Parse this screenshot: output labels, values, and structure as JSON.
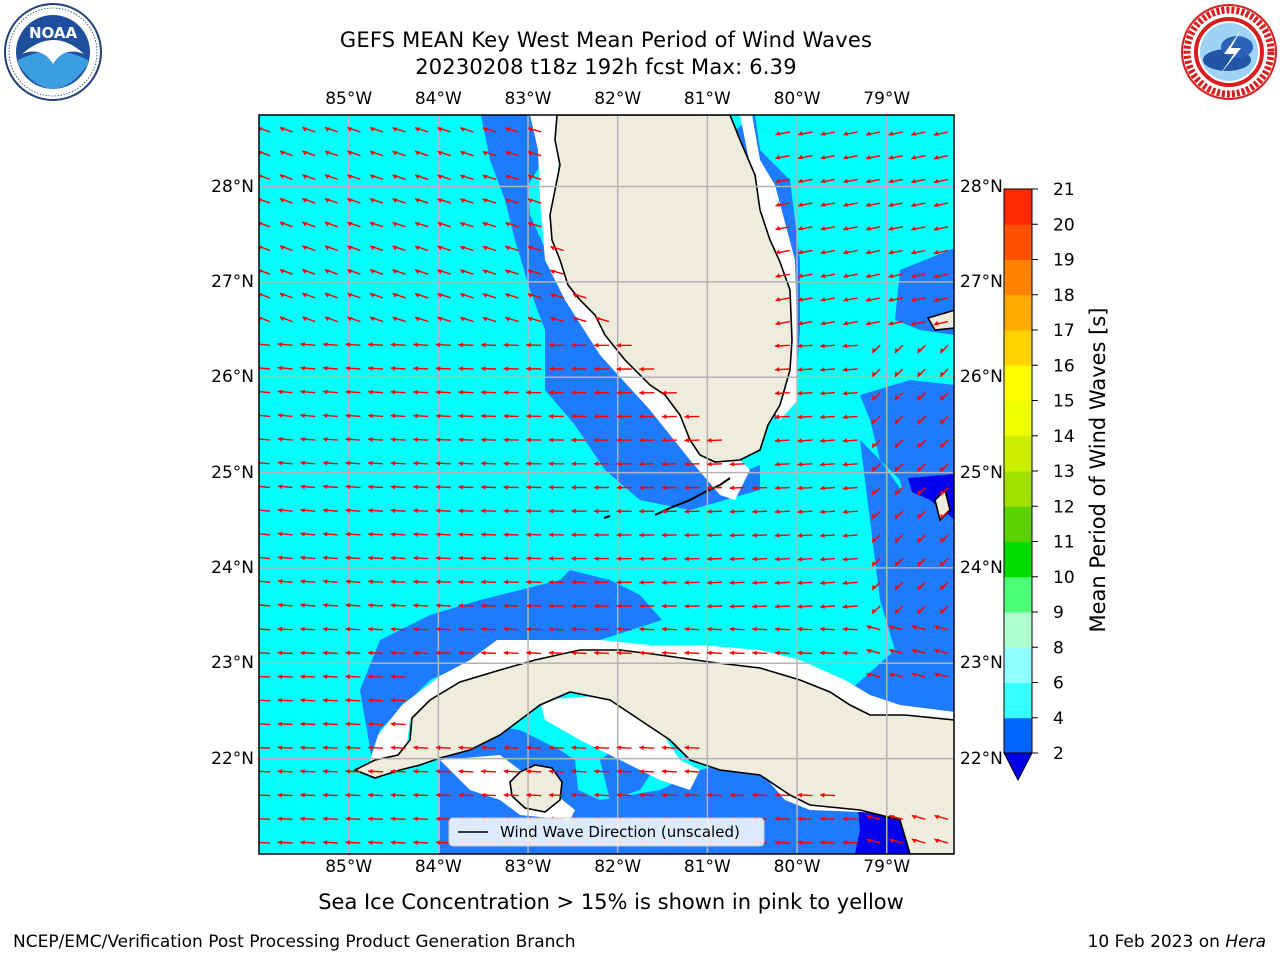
{
  "header": {
    "title_line1": "GEFS MEAN Key West Mean Period of Wind Waves",
    "title_line2": "20230208 t18z 192h fcst   Max: 6.39"
  },
  "logos": {
    "left": {
      "name": "noaa-logo",
      "text": "NOAA",
      "ring_text": "NATIONAL OCEANIC AND ATMOSPHERIC ADMINISTRATION · U.S. DEPARTMENT OF COMMERCE"
    },
    "right": {
      "name": "nws-logo",
      "ring_text": "NATIONAL WEATHER SERVICE"
    }
  },
  "map": {
    "lon_ticks": [
      "85°W",
      "84°W",
      "83°W",
      "82°W",
      "81°W",
      "80°W",
      "79°W"
    ],
    "lat_ticks": [
      "28°N",
      "27°N",
      "26°N",
      "25°N",
      "24°N",
      "23°N",
      "22°N"
    ],
    "lon_values": [
      -85,
      -84,
      -83,
      -82,
      -81,
      -80,
      -79
    ],
    "lat_values": [
      28,
      27,
      26,
      25,
      24,
      23,
      22
    ],
    "extent": {
      "lon_min": -86.0,
      "lon_max": -78.25,
      "lat_min": 21.0,
      "lat_max": 28.75
    },
    "legend_label": "Wind Wave Direction (unscaled)",
    "colors": {
      "ocean_4_6": "#00ffff",
      "ocean_2_4": "#1e7aff",
      "ocean_lt2": "#0000ee",
      "land": "#eeecdd",
      "vectors": "#ff0000",
      "grid": "#b4b4b4"
    }
  },
  "colorbar": {
    "title": "Mean Period of Wind Waves [s]",
    "levels": [
      2,
      4,
      6,
      8,
      9,
      10,
      11,
      12,
      13,
      14,
      15,
      16,
      17,
      18,
      19,
      20,
      21
    ],
    "labels": [
      "2",
      "4",
      "6",
      "8",
      "9",
      "10",
      "11",
      "12",
      "13",
      "14",
      "15",
      "16",
      "17",
      "18",
      "19",
      "20",
      "21"
    ],
    "colors": [
      "#0064ff",
      "#00e6ff",
      "#36ffff",
      "#91ffff",
      "#b0ffcf",
      "#4cff76",
      "#00dc00",
      "#5ad200",
      "#a0e100",
      "#ccee00",
      "#eeff00",
      "#ffff00",
      "#ffd200",
      "#ffaa00",
      "#ff8200",
      "#ff5000",
      "#ff2800",
      "#ff0000"
    ],
    "extend_color": "#0000e6"
  },
  "footnote": "Sea Ice Concentration > 15% is shown in pink to yellow",
  "footer": {
    "left": "NCEP/EMC/Verification Post Processing Product Generation Branch",
    "right_prefix": "10 Feb 2023 on ",
    "right_machine": "Hera"
  }
}
